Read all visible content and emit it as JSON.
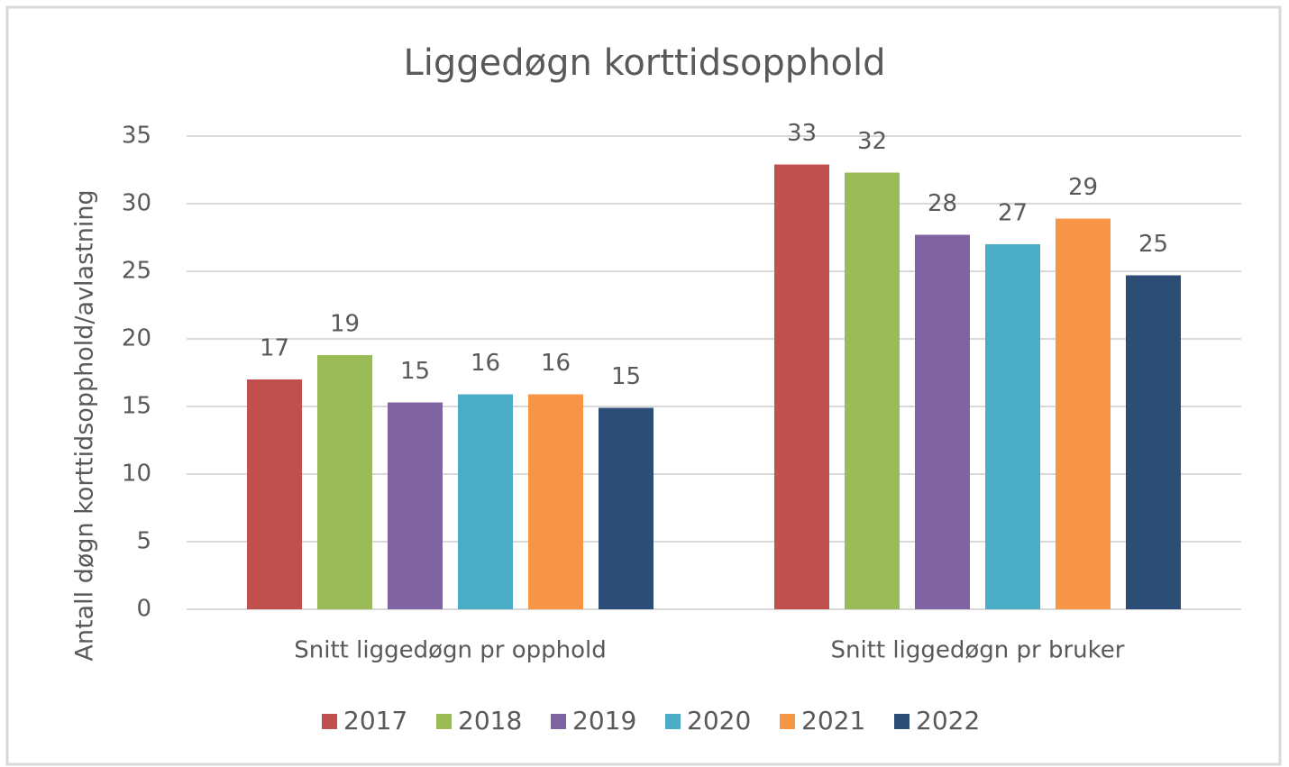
{
  "chart_data": {
    "type": "bar",
    "title": "Liggedøgn korttidsopphold",
    "y_label": "Antall døgn korttidsopphold/avlastning",
    "categories": [
      "Snitt liggedøgn pr opphold",
      "Snitt liggedøgn pr bruker"
    ],
    "series": [
      {
        "name": "2017",
        "color": "#c0504d",
        "values": [
          17,
          32.9
        ],
        "value_labels": [
          "17",
          "33"
        ]
      },
      {
        "name": "2018",
        "color": "#9bbb59",
        "values": [
          18.8,
          32.3
        ],
        "value_labels": [
          "19",
          "32"
        ]
      },
      {
        "name": "2019",
        "color": "#8064a2",
        "values": [
          15.3,
          27.7
        ],
        "value_labels": [
          "15",
          "28"
        ]
      },
      {
        "name": "2020",
        "color": "#4bacc6",
        "values": [
          15.9,
          27
        ],
        "value_labels": [
          "16",
          "27"
        ]
      },
      {
        "name": "2021",
        "color": "#f79646",
        "values": [
          15.9,
          28.9
        ],
        "value_labels": [
          "16",
          "29"
        ]
      },
      {
        "name": "2022",
        "color": "#2c4d75",
        "values": [
          14.9,
          24.7
        ],
        "value_labels": [
          "15",
          "25"
        ]
      }
    ],
    "ylim": [
      0,
      35
    ],
    "yticks": [
      0,
      5,
      10,
      15,
      20,
      25,
      30,
      35
    ],
    "grid": true,
    "legend": "bottom"
  }
}
